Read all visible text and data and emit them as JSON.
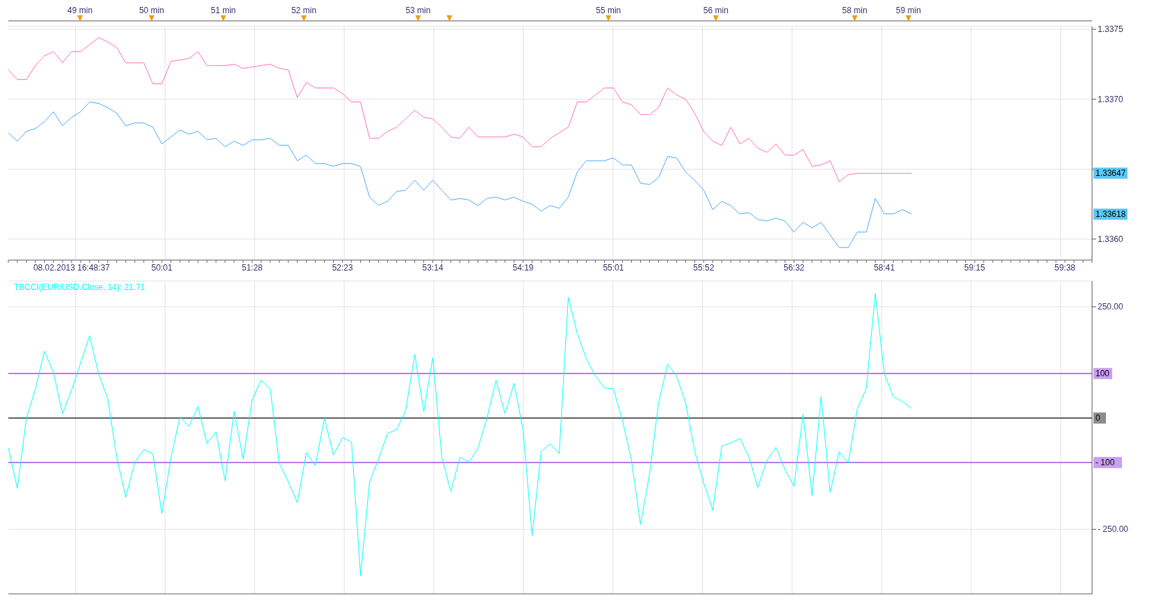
{
  "chart_data": [
    {
      "type": "line",
      "grid": true,
      "categories": [
        null,
        null,
        null,
        null,
        null,
        null,
        null,
        "08.02.2013 16:48:37",
        null,
        null,
        null,
        null,
        null,
        null,
        null,
        null,
        null,
        "50:01",
        null,
        null,
        null,
        null,
        null,
        null,
        null,
        null,
        null,
        "51:28",
        null,
        null,
        null,
        null,
        null,
        null,
        null,
        null,
        null,
        "52:23",
        null,
        null,
        null,
        null,
        null,
        null,
        null,
        null,
        null,
        "53:14",
        null,
        null,
        null,
        null,
        null,
        null,
        null,
        null,
        null,
        "54:19",
        null,
        null,
        null,
        null,
        null,
        null,
        null,
        null,
        null,
        "55:01",
        null,
        null,
        null,
        null,
        null,
        null,
        null,
        null,
        null,
        "55:52",
        null,
        null,
        null,
        null,
        null,
        null,
        null,
        null,
        null,
        "56:32",
        null,
        null,
        null,
        null,
        null,
        null,
        null,
        null,
        null,
        "58:41",
        null,
        null,
        null,
        null,
        null,
        null,
        null,
        null,
        null,
        "59:15",
        null,
        null,
        null,
        null,
        null,
        null,
        null,
        null,
        null,
        "59:38",
        null,
        null,
        null
      ],
      "ylim": [
        1.33585,
        1.33752
      ],
      "yticks": [
        {
          "value": 1.336,
          "label": "1.3360"
        },
        {
          "value": 1.3365,
          "label": null
        },
        {
          "value": 1.337,
          "label": "1.3370"
        },
        1.3375
      ],
      "annotations": [
        "49 min",
        "50 min",
        "51 min",
        "52 min",
        "53 min",
        "55 min",
        "56 min",
        "58 min",
        "59 min",
        "1.33647",
        "1.33618"
      ],
      "series": [
        {
          "color": "#ff6eb4",
          "values": [
            1.33721,
            1.33714,
            1.33714,
            1.33724,
            1.33731,
            1.33734,
            1.33726,
            1.33734,
            1.33734,
            1.33739,
            1.33744,
            1.33741,
            1.33737,
            1.33726,
            1.33726,
            1.33726,
            1.33711,
            1.33711,
            1.33727,
            1.33728,
            1.33729,
            1.33734,
            1.33724,
            1.33724,
            1.33724,
            1.33725,
            1.33722,
            1.33723,
            1.33724,
            1.33725,
            1.33722,
            1.33721,
            1.33701,
            1.33712,
            1.33708,
            1.33708,
            1.33708,
            1.33704,
            1.33698,
            1.33698,
            1.33672,
            1.33672,
            1.33677,
            1.3368,
            1.33686,
            1.33692,
            1.33687,
            1.33686,
            1.3368,
            1.33673,
            1.33672,
            1.3368,
            1.33673,
            1.33673,
            1.33673,
            1.33673,
            1.33675,
            1.33673,
            1.33666,
            1.33666,
            1.33672,
            1.33676,
            1.3368,
            1.33698,
            1.33698,
            1.33703,
            1.33708,
            1.33708,
            1.33698,
            1.33696,
            1.33689,
            1.33689,
            1.33694,
            1.33708,
            1.33703,
            1.337,
            1.3369,
            1.33677,
            1.3367,
            1.33667,
            1.3368,
            1.33668,
            1.33672,
            1.33665,
            1.33662,
            1.33668,
            1.3366,
            1.3366,
            1.33664,
            1.33652,
            1.33653,
            1.33656,
            1.33641,
            1.33646,
            1.33647,
            1.33647,
            1.33647,
            1.33647,
            1.33647,
            1.33647,
            1.33647,
            null,
            null,
            null,
            null,
            null,
            null,
            null,
            null,
            null,
            null,
            null,
            null,
            null,
            null,
            null,
            null,
            null,
            null,
            null,
            null
          ]
        },
        {
          "color": "#4da6ff",
          "values": [
            1.33676,
            1.3367,
            1.33677,
            1.33679,
            1.33684,
            1.33691,
            1.33681,
            1.33687,
            1.33691,
            1.33698,
            1.33697,
            1.33694,
            1.3369,
            1.33681,
            1.33683,
            1.33683,
            1.3368,
            1.33668,
            1.33673,
            1.33678,
            1.33675,
            1.33677,
            1.33671,
            1.33672,
            1.33666,
            1.3367,
            1.33667,
            1.33671,
            1.33671,
            1.33672,
            1.33667,
            1.33667,
            1.33656,
            1.3366,
            1.33654,
            1.33654,
            1.33652,
            1.33654,
            1.33654,
            1.33652,
            1.3363,
            1.33624,
            1.33627,
            1.33634,
            1.33635,
            1.33642,
            1.33635,
            1.33642,
            1.33635,
            1.33628,
            1.33629,
            1.33628,
            1.33624,
            1.33629,
            1.3363,
            1.33628,
            1.3363,
            1.33627,
            1.33625,
            1.3362,
            1.33624,
            1.33622,
            1.3363,
            1.33648,
            1.33656,
            1.33656,
            1.33656,
            1.33658,
            1.33653,
            1.33653,
            1.3364,
            1.33639,
            1.33644,
            1.33659,
            1.33658,
            1.33648,
            1.33642,
            1.33635,
            1.33621,
            1.33627,
            1.33624,
            1.33618,
            1.33619,
            1.33614,
            1.33613,
            1.33615,
            1.33613,
            1.33605,
            1.33612,
            1.33608,
            1.33612,
            1.33603,
            1.33594,
            1.33594,
            1.33605,
            1.33605,
            1.33629,
            1.33618,
            1.33618,
            1.33621,
            1.33618,
            null,
            null,
            null,
            null,
            null,
            null,
            null,
            null,
            null,
            null,
            null,
            null,
            null,
            null,
            null,
            null,
            null,
            null,
            null,
            null
          ]
        }
      ]
    },
    {
      "type": "line",
      "grid": true,
      "title": "TBCCI(EUR/USD.Close, 14): 21.71",
      "tick_labels": "y",
      "categories": [
        null,
        null,
        null,
        null,
        null,
        null,
        null,
        null,
        null,
        null,
        null,
        null,
        null,
        null,
        null,
        null,
        null,
        null,
        null,
        null,
        null,
        null,
        null,
        null,
        null,
        null,
        null,
        null,
        null,
        null,
        null,
        null,
        null,
        null,
        null,
        null,
        null,
        null,
        null,
        null,
        null,
        null,
        null,
        null,
        null,
        null,
        null,
        null,
        null,
        null,
        null,
        null,
        null,
        null,
        null,
        null,
        null,
        null,
        null,
        null,
        null,
        null,
        null,
        null,
        null,
        null,
        null,
        null,
        null,
        null,
        null,
        null,
        null,
        null,
        null,
        null,
        null,
        null,
        null,
        null,
        null,
        null,
        null,
        null,
        null,
        null,
        null,
        null,
        null,
        null,
        null,
        null,
        null,
        null,
        null,
        null,
        null,
        null,
        null,
        null,
        null,
        null,
        null,
        null,
        null,
        null,
        null,
        null,
        null,
        null,
        null,
        null,
        null,
        null,
        null,
        null,
        null,
        null,
        null,
        null,
        null
      ],
      "ylim": [
        -395,
        308
      ],
      "yticks": [
        {
          "value": -250,
          "label": "- 250.00"
        },
        {
          "value": 250,
          "label": "250.00"
        }
      ],
      "ref_lines": [
        {
          "axis": "y",
          "value": 100,
          "label": "100",
          "color": "#8a2be2"
        },
        {
          "axis": "y",
          "value": 0,
          "label": "0",
          "color": "#000000"
        },
        {
          "axis": "y",
          "value": -100,
          "label": "- 100",
          "color": "#8a2be2"
        }
      ],
      "series": [
        {
          "color": "#00ffff",
          "values": [
            -67,
            -158,
            0,
            65,
            150,
            102,
            10,
            63,
            124,
            185,
            99,
            44,
            -88,
            -178,
            -99,
            -71,
            -80,
            -214,
            -90,
            3,
            -19,
            26,
            -58,
            -31,
            -141,
            15,
            -92,
            41,
            85,
            65,
            -102,
            -143,
            -190,
            -78,
            -107,
            0,
            -83,
            -44,
            -54,
            -354,
            -143,
            -92,
            -34,
            -26,
            17,
            143,
            15,
            136,
            -88,
            -165,
            -88,
            -99,
            -68,
            0,
            85,
            10,
            78,
            -27,
            -264,
            -75,
            -58,
            -80,
            271,
            190,
            133,
            95,
            68,
            65,
            -5,
            -95,
            -239,
            -126,
            34,
            121,
            94,
            34,
            -75,
            -146,
            -207,
            -63,
            -56,
            -46,
            -87,
            -156,
            -95,
            -66,
            -116,
            -153,
            8,
            -174,
            48,
            -167,
            -76,
            -101,
            20,
            67,
            280,
            99,
            48,
            37,
            22,
            null,
            null,
            null,
            null,
            null,
            null,
            null,
            null,
            null,
            null,
            null,
            null,
            null,
            null,
            null,
            null,
            null,
            null,
            null,
            null
          ]
        }
      ]
    }
  ]
}
